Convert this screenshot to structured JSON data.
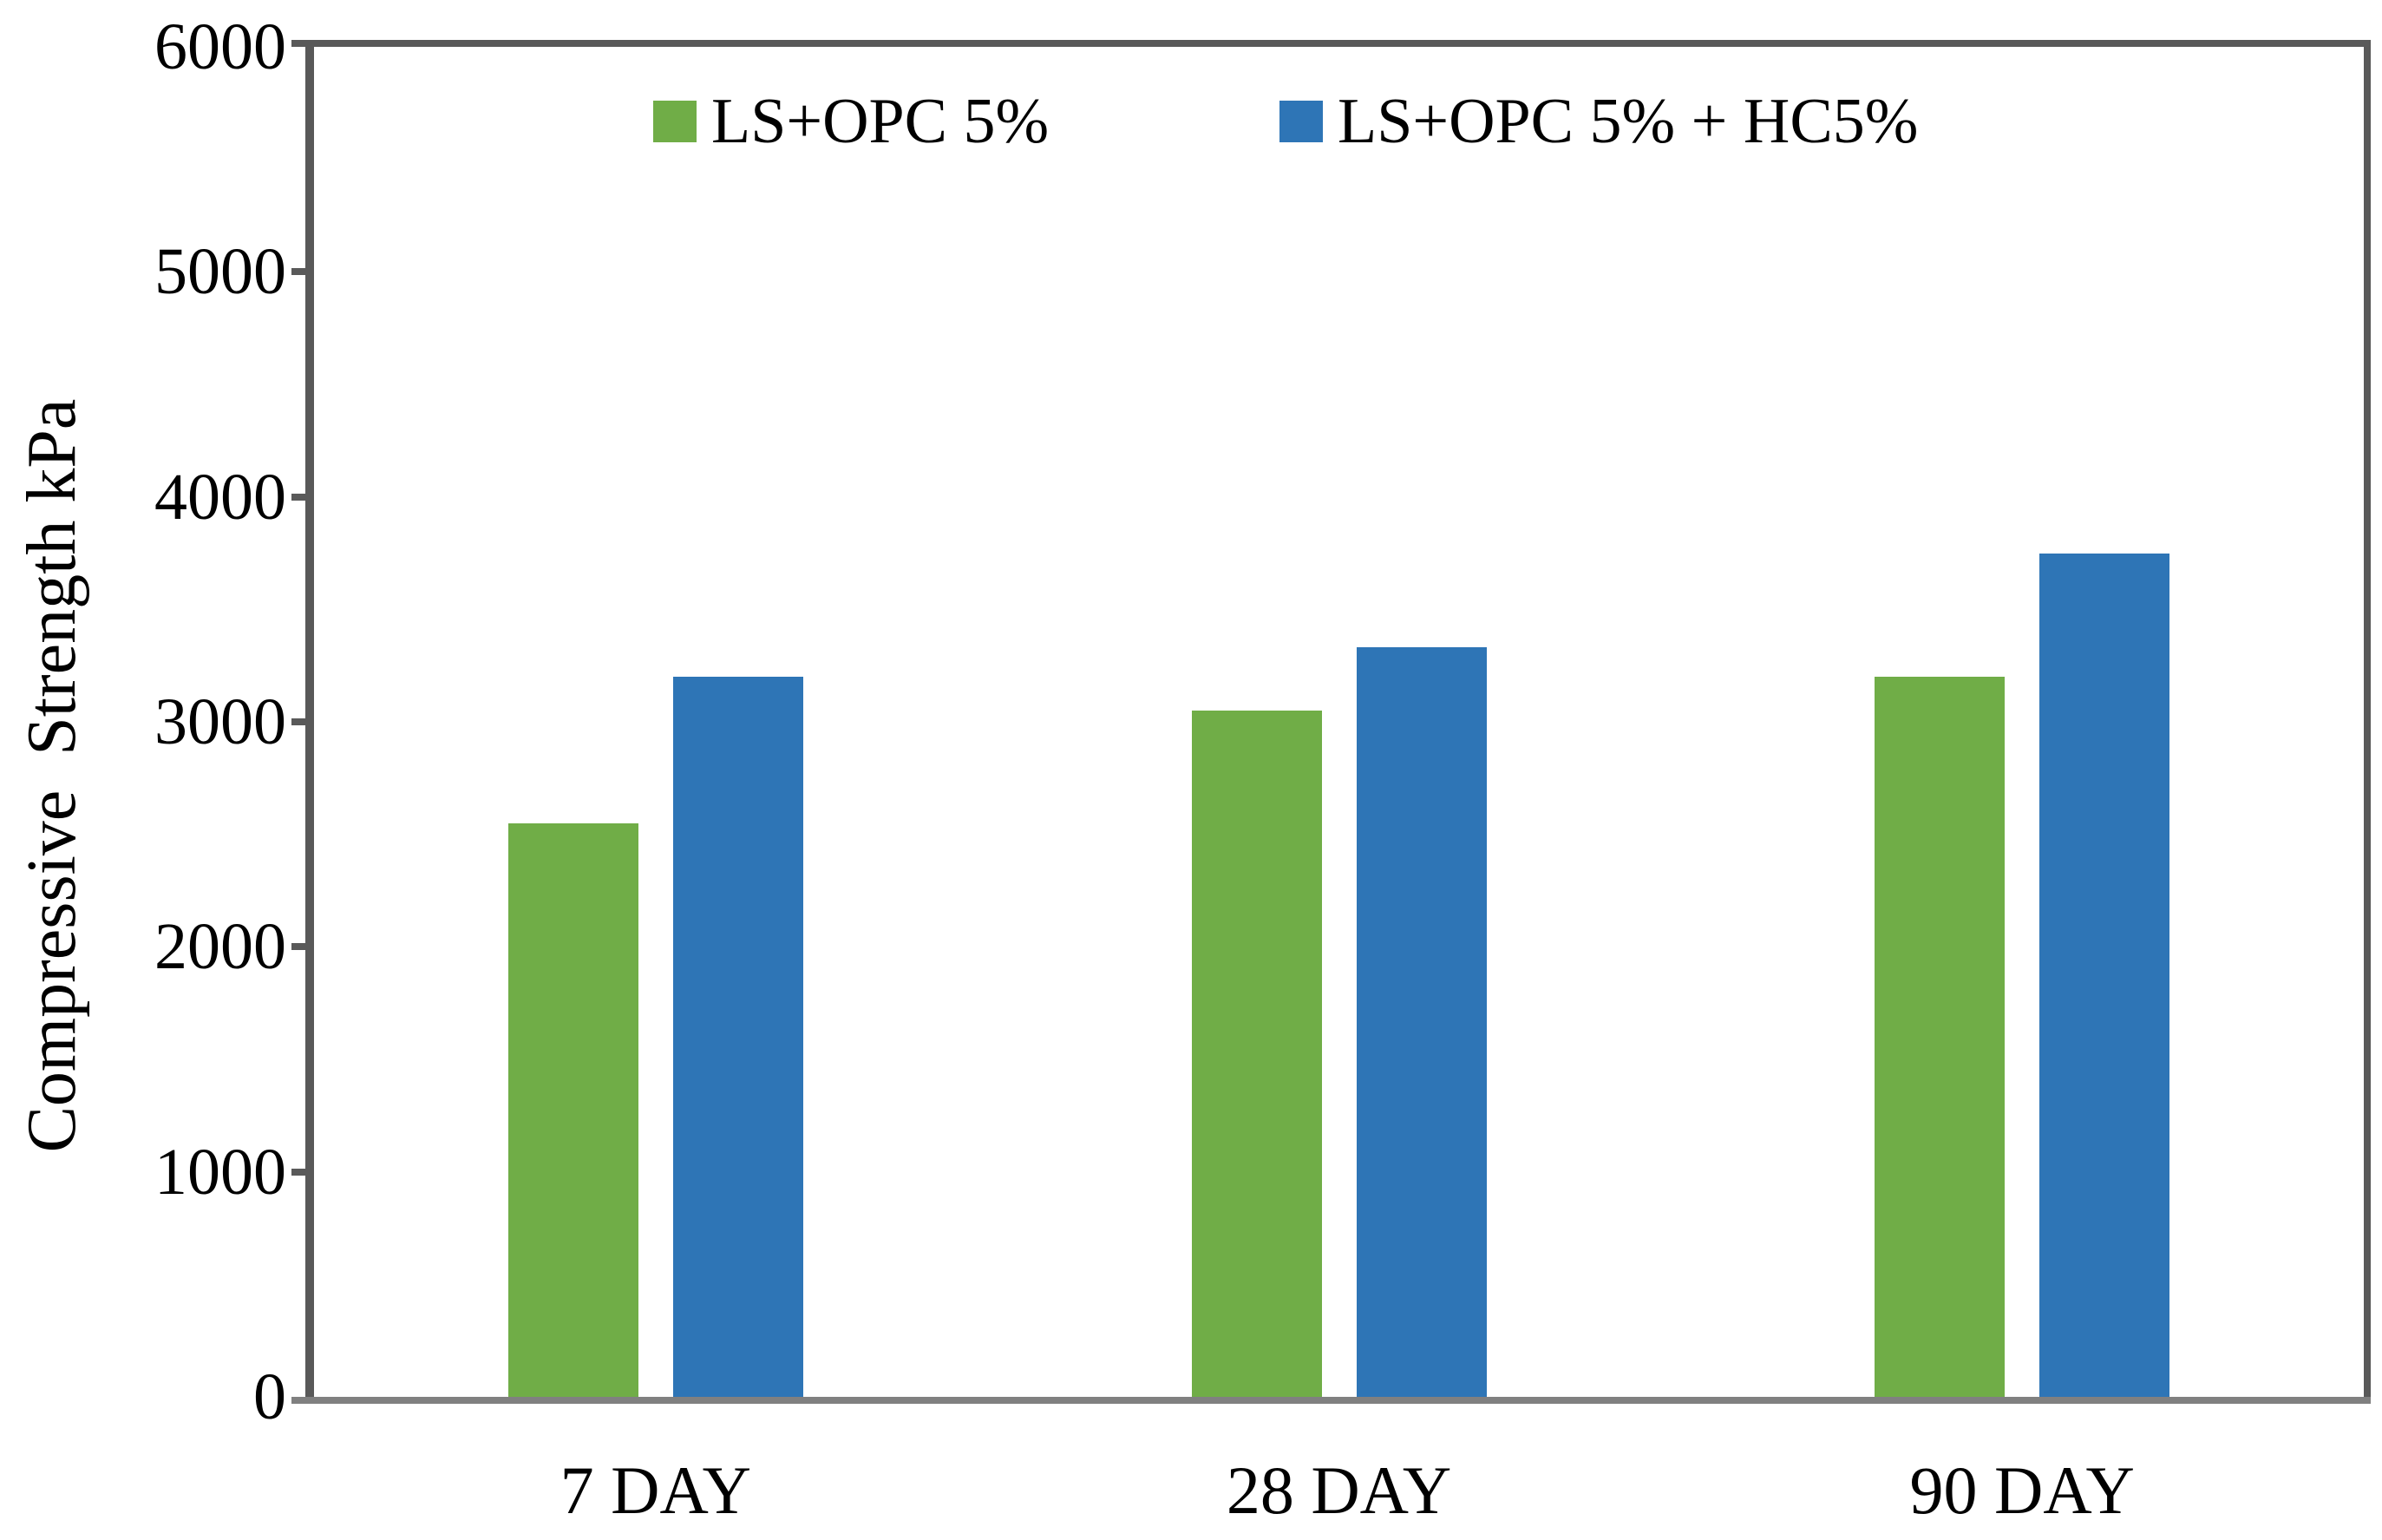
{
  "chart_data": {
    "type": "bar",
    "title": "",
    "categories": [
      "7 DAY",
      "28 DAY",
      "90 DAY"
    ],
    "series": [
      {
        "name": "LS+OPC 5%",
        "color": "#70AD47",
        "values": [
          2550,
          3050,
          3200
        ]
      },
      {
        "name": "LS+OPC 5% + HC5%",
        "color": "#2E75B6",
        "values": [
          3200,
          3330,
          3750
        ]
      }
    ],
    "xlabel": "",
    "ylabel": "Compressive  Strength kPa",
    "ylim": [
      0,
      6000
    ],
    "ytick_step": 1000,
    "yticks": [
      0,
      1000,
      2000,
      3000,
      4000,
      5000,
      6000
    ],
    "yticklabels": [
      "0",
      "1000",
      "2000",
      "3000",
      "4000",
      "5000",
      "6000"
    ],
    "grid": false,
    "legend_position": "top-inside",
    "axis_colors": {
      "y_axis_and_box": "#595959",
      "x_axis_line": "#808080"
    }
  }
}
